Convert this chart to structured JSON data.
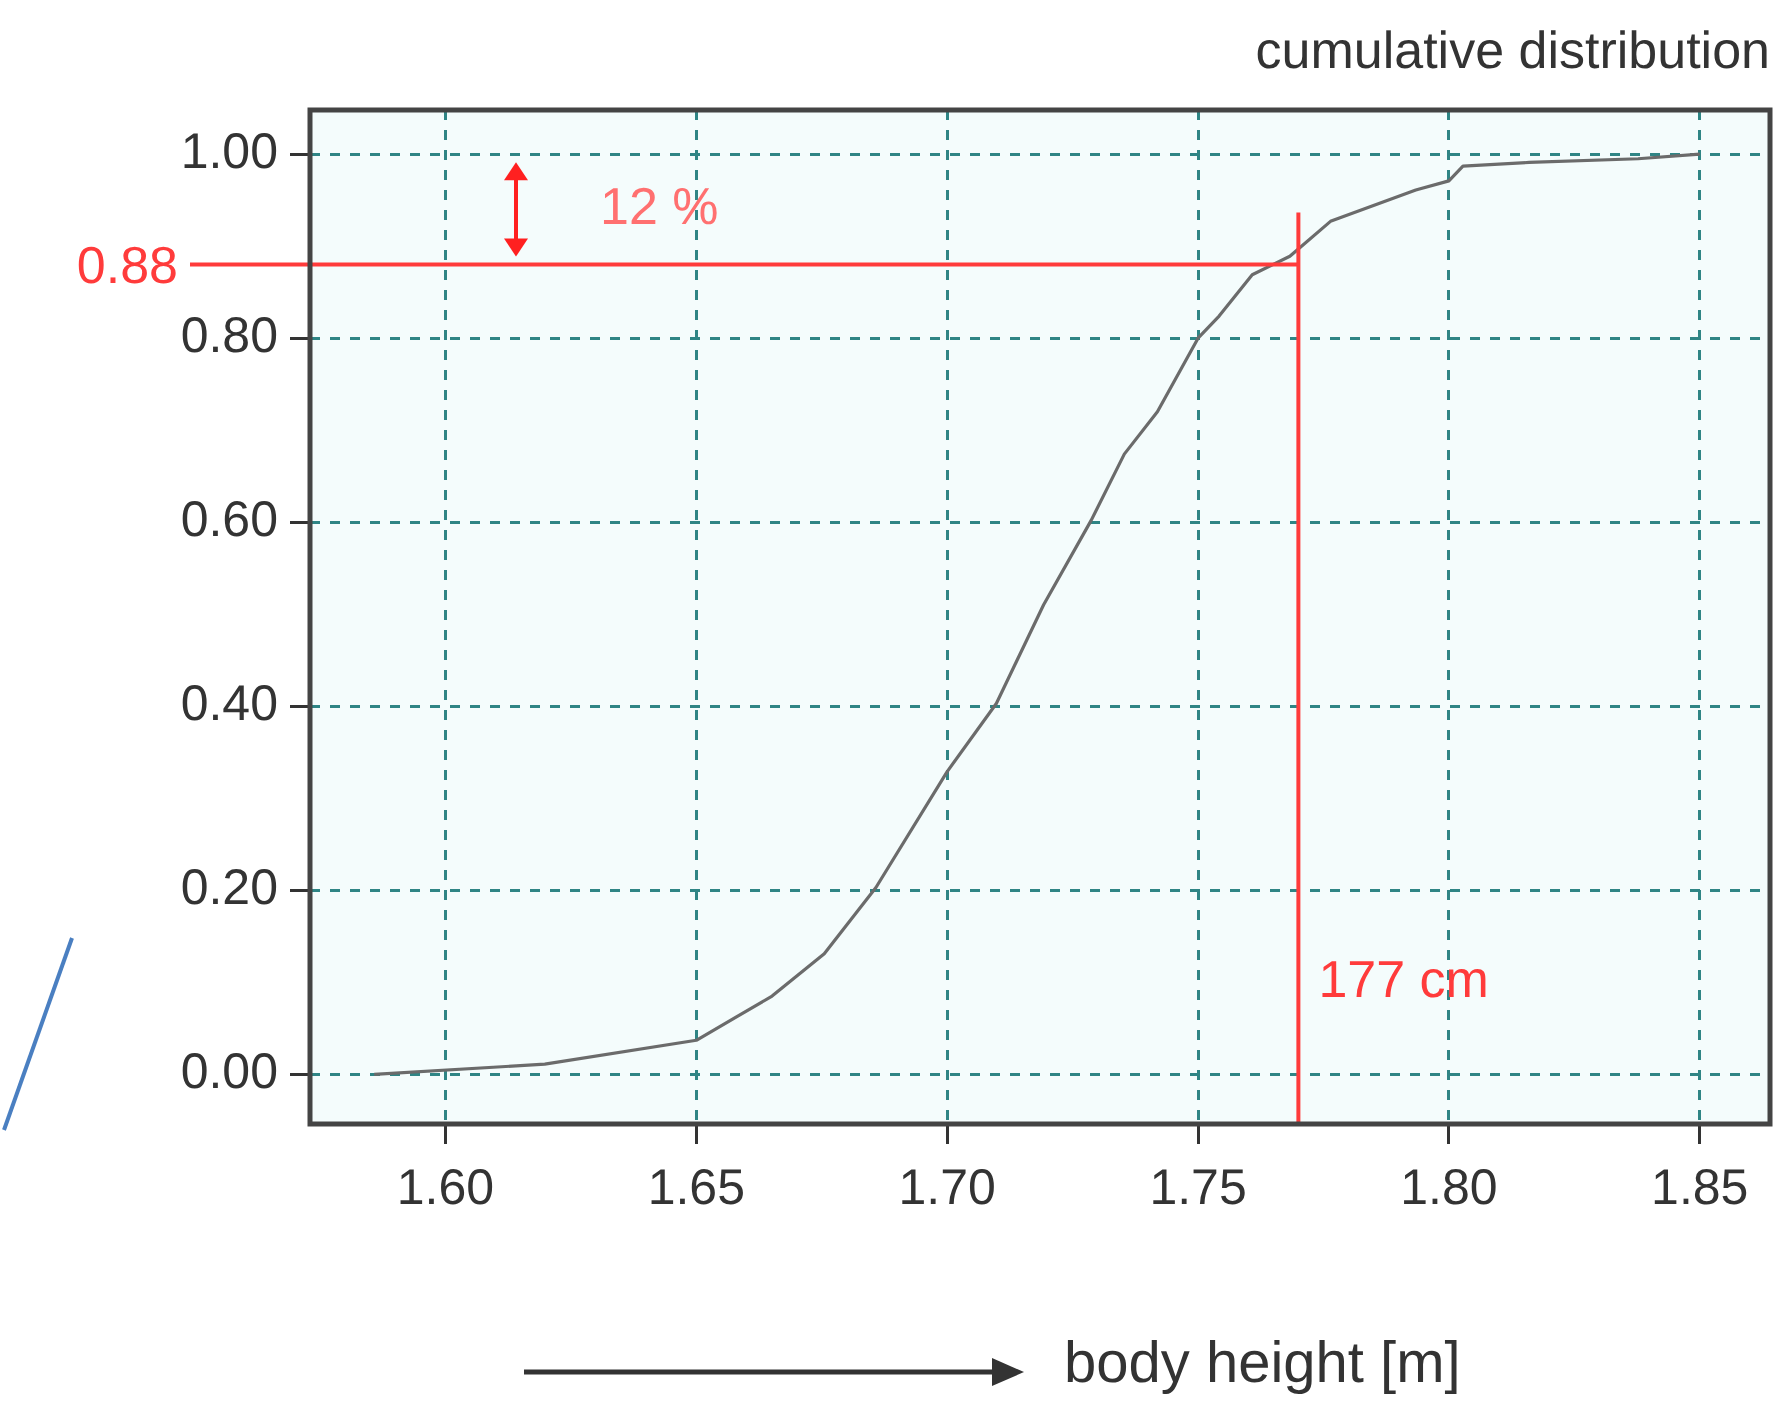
{
  "chart_data": {
    "type": "line",
    "title": "cumulative distribution",
    "xlabel": "body height [m]",
    "x": [
      1.5858,
      1.6198,
      1.65,
      1.6651,
      1.6755,
      1.6858,
      1.7,
      1.7098,
      1.7192,
      1.7287,
      1.7353,
      1.7419,
      1.75,
      1.7542,
      1.7608,
      1.7683,
      1.7764,
      1.7934,
      1.8,
      1.8028,
      1.816,
      1.8377,
      1.85
    ],
    "series": [
      {
        "color": "#6b6b6b",
        "values": [
          0,
          0.011,
          0.037,
          0.085,
          0.131,
          0.203,
          0.329,
          0.403,
          0.51,
          0.602,
          0.674,
          0.72,
          0.8,
          0.824,
          0.869,
          0.889,
          0.927,
          0.961,
          0.971,
          0.987,
          0.991,
          0.995,
          1.0
        ]
      }
    ],
    "xlim": [
      1.573,
      1.864
    ],
    "ylim": [
      -0.054,
      1.048
    ],
    "xticks": [
      {
        "value": 1.6,
        "label": "1.60"
      },
      {
        "value": 1.65,
        "label": "1.65"
      },
      {
        "value": 1.7,
        "label": "1.70"
      },
      {
        "value": 1.75,
        "label": "1.75"
      },
      {
        "value": 1.8,
        "label": "1.80"
      },
      {
        "value": 1.85,
        "label": "1.85"
      }
    ],
    "yticks": [
      {
        "value": 0,
        "label": "0.00"
      },
      {
        "value": 0.2,
        "label": "0.20"
      },
      {
        "value": 0.4,
        "label": "0.40"
      },
      {
        "value": 0.6,
        "label": "0.60"
      },
      {
        "value": 0.8,
        "label": "0.80"
      },
      {
        "value": 1,
        "label": "1.00"
      }
    ],
    "grid": true,
    "legend": false,
    "marker": "none",
    "line_style": "solid",
    "ref_lines": [
      {
        "axis": "y",
        "value": 0.88,
        "label": "0.88",
        "color": "#ff3b3b"
      },
      {
        "axis": "x",
        "value": 1.77,
        "label": "177 cm",
        "color": "#ff3b3b"
      }
    ],
    "annotations": [
      "12 %"
    ]
  }
}
